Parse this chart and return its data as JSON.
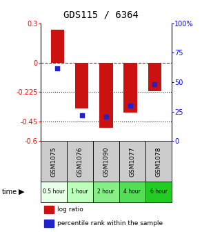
{
  "title": "GDS115 / 6364",
  "samples": [
    "GSM1075",
    "GSM1076",
    "GSM1090",
    "GSM1077",
    "GSM1078"
  ],
  "time_labels": [
    "0.5 hour",
    "1 hour",
    "2 hour",
    "4 hour",
    "6 hour"
  ],
  "time_colors": [
    "#e8ffe8",
    "#bbffbb",
    "#88ee88",
    "#55dd55",
    "#22cc22"
  ],
  "log_ratios": [
    0.25,
    -0.35,
    -0.5,
    -0.38,
    -0.22
  ],
  "percentile_ranks": [
    62,
    22,
    21,
    30,
    48
  ],
  "bar_color": "#cc1111",
  "dot_color": "#2222cc",
  "ylim_left": [
    -0.6,
    0.3
  ],
  "ylim_right": [
    0,
    100
  ],
  "yticks_left": [
    0.3,
    0.0,
    -0.225,
    -0.45,
    -0.6
  ],
  "ytick_labels_left": [
    "0.3",
    "0",
    "-0.225",
    "-0.45",
    "-0.6"
  ],
  "yticks_right": [
    100,
    75,
    50,
    25,
    0
  ],
  "ytick_labels_right": [
    "100%",
    "75",
    "50",
    "25",
    "0"
  ],
  "hlines": [
    0.0,
    -0.225,
    -0.45
  ],
  "hline_styles": [
    "dashed",
    "dotted",
    "dotted"
  ],
  "hline_colors": [
    "#cc0000",
    "#000000",
    "#000000"
  ],
  "legend_items": [
    "log ratio",
    "percentile rank within the sample"
  ],
  "legend_colors": [
    "#cc1111",
    "#2222cc"
  ],
  "bg_sample": "#cccccc",
  "title_fontsize": 10,
  "tick_fontsize": 7,
  "bar_width": 0.55
}
